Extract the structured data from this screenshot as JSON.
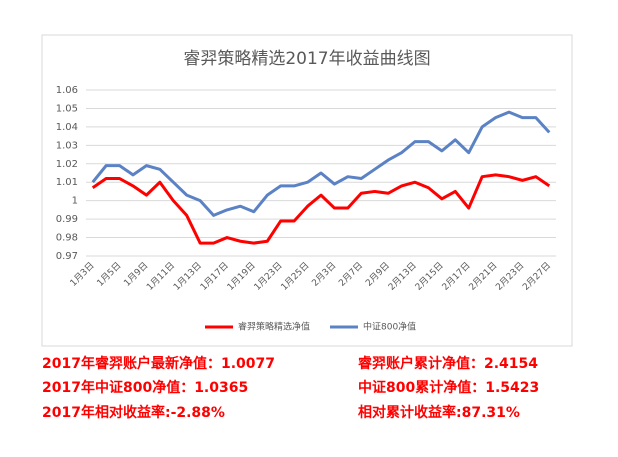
{
  "chart_data": {
    "type": "line",
    "title": "睿羿策略精选2017年收益曲线图",
    "categories": [
      "1月3日",
      null,
      "1月5日",
      null,
      "1月9日",
      null,
      "1月11日",
      null,
      "1月13日",
      null,
      "1月17日",
      null,
      "1月19日",
      null,
      "1月23日",
      null,
      "1月25日",
      null,
      "2月3日",
      null,
      "2月7日",
      null,
      "2月9日",
      null,
      "2月13日",
      null,
      "2月15日",
      null,
      "2月17日",
      null,
      "2月21日",
      null,
      "2月23日",
      null,
      "2月27日"
    ],
    "series": [
      {
        "name": "睿羿策略精选净值",
        "color": "#ff0000",
        "values": [
          1.007,
          1.012,
          1.012,
          1.008,
          1.003,
          1.01,
          1.0,
          0.992,
          0.977,
          0.977,
          0.98,
          0.978,
          0.977,
          0.978,
          0.989,
          0.989,
          0.997,
          1.003,
          0.996,
          0.996,
          1.004,
          1.005,
          1.004,
          1.008,
          1.01,
          1.007,
          1.001,
          1.005,
          0.996,
          1.013,
          1.014,
          1.013,
          1.011,
          1.013,
          1.008
        ]
      },
      {
        "name": "中证800净值",
        "color": "#5b82c4",
        "values": [
          1.01,
          1.019,
          1.019,
          1.014,
          1.019,
          1.017,
          1.01,
          1.003,
          1.0,
          0.992,
          0.995,
          0.997,
          0.994,
          1.003,
          1.008,
          1.008,
          1.01,
          1.015,
          1.009,
          1.013,
          1.012,
          1.017,
          1.022,
          1.026,
          1.032,
          1.032,
          1.027,
          1.033,
          1.026,
          1.04,
          1.045,
          1.048,
          1.045,
          1.045,
          1.037
        ]
      }
    ],
    "ylim": [
      0.97,
      1.06
    ],
    "yticks": [
      0.97,
      0.98,
      0.99,
      1,
      1.01,
      1.02,
      1.03,
      1.04,
      1.05,
      1.06
    ],
    "grid": true,
    "legend": "bottom"
  },
  "summary": [
    [
      "2017年睿羿账户最新净值：1.0077",
      "睿羿账户累计净值：2.4154"
    ],
    [
      "2017年中证800净值：1.0365",
      "中证800累计净值：1.5423"
    ],
    [
      "2017年相对收益率:-2.88%",
      "相对累计收益率:87.31%"
    ]
  ]
}
